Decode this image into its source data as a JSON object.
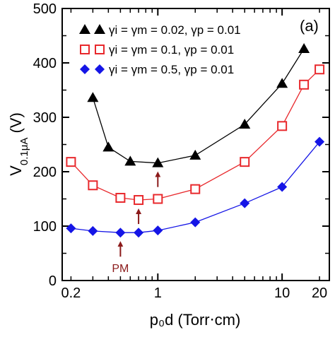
{
  "chart_data": {
    "type": "line",
    "panel_label": "(a)",
    "xlabel": "p₀d (Torr⋅cm)",
    "ylabel": "V",
    "ylabel_subscript": "0.1μA",
    "ylabel_unit": "(V)",
    "xscale": "log",
    "xlim": [
      0.17,
      24
    ],
    "ylim": [
      0,
      500
    ],
    "xticks": [
      0.2,
      1,
      10,
      20
    ],
    "xtick_labels": [
      "0.2",
      "1",
      "10",
      "20"
    ],
    "yticks": [
      0,
      100,
      200,
      300,
      400,
      500
    ],
    "ytick_labels": [
      "0",
      "100",
      "200",
      "300",
      "400",
      "500"
    ],
    "legend_position": "top-left",
    "series": [
      {
        "name": "γi = γm = 0.02, γp = 0.01",
        "marker": "triangle",
        "color": "#000000",
        "x": [
          0.3,
          0.4,
          0.6,
          1.0,
          2.0,
          5.0,
          10.0,
          15.0
        ],
        "y": [
          336,
          245,
          219,
          216,
          230,
          287,
          362,
          426
        ]
      },
      {
        "name": "γi = γm = 0.1, γp = 0.01",
        "marker": "open-square",
        "color": "#e8282c",
        "x": [
          0.2,
          0.3,
          0.5,
          0.7,
          1.0,
          2.0,
          5.0,
          10.0,
          15.0,
          20.0
        ],
        "y": [
          218,
          175,
          152,
          148,
          150,
          168,
          218,
          284,
          360,
          388
        ]
      },
      {
        "name": "γi = γm = 0.5, γp = 0.01",
        "marker": "diamond",
        "color": "#1515e6",
        "x": [
          0.2,
          0.3,
          0.5,
          0.7,
          1.0,
          2.0,
          5.0,
          10.0,
          20.0
        ],
        "y": [
          96,
          91,
          88,
          88,
          92,
          107,
          142,
          172,
          255
        ]
      }
    ],
    "annotations": [
      {
        "text": "PM",
        "x": 0.5,
        "y": 88,
        "color": "#8b1a1a"
      },
      {
        "text": "",
        "x": 0.7,
        "y": 148,
        "color": "#8b1a1a"
      },
      {
        "text": "",
        "x": 1.0,
        "y": 216,
        "color": "#8b1a1a"
      }
    ]
  }
}
